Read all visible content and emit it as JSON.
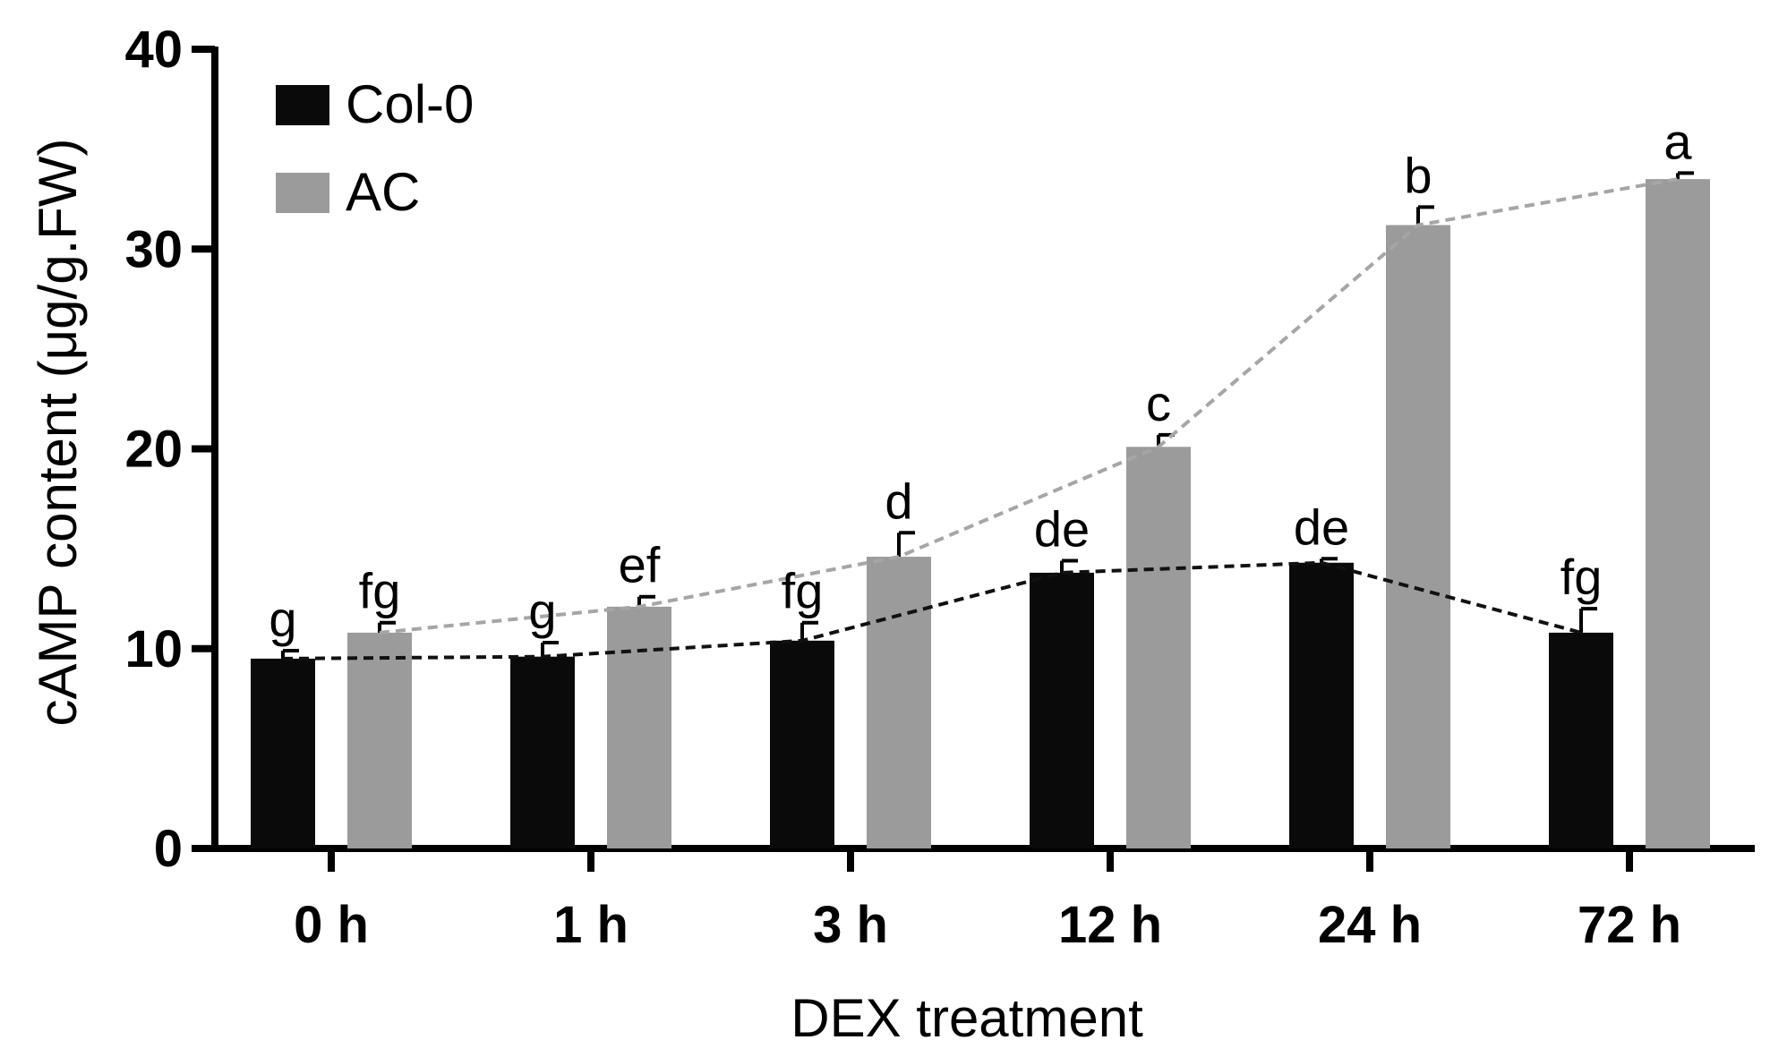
{
  "chart_data": {
    "type": "bar",
    "title": "",
    "xlabel": "DEX treatment",
    "ylabel": "cAMP content (μg/g.FW)",
    "ylim": [
      0,
      40
    ],
    "yticks": [
      0,
      10,
      20,
      30,
      40
    ],
    "categories": [
      "0 h",
      "1 h",
      "3 h",
      "12 h",
      "24 h",
      "72 h"
    ],
    "legend_position": "top-left",
    "series": [
      {
        "name": "Col-0",
        "color": "#0a0a0a",
        "values": [
          9.5,
          9.6,
          10.4,
          13.8,
          14.3,
          10.8
        ],
        "errors": [
          0.4,
          0.7,
          0.9,
          0.6,
          0.2,
          1.2
        ],
        "letters": [
          "g",
          "g",
          "fg",
          "de",
          "de",
          "fg"
        ],
        "trend_line": true
      },
      {
        "name": "AC",
        "color": "#9b9b9b",
        "values": [
          10.8,
          12.1,
          14.6,
          20.1,
          31.2,
          33.5
        ],
        "errors": [
          0.5,
          0.5,
          1.2,
          0.6,
          0.9,
          0.3
        ],
        "letters": [
          "fg",
          "ef",
          "d",
          "c",
          "b",
          "a"
        ],
        "trend_line": true
      }
    ]
  }
}
